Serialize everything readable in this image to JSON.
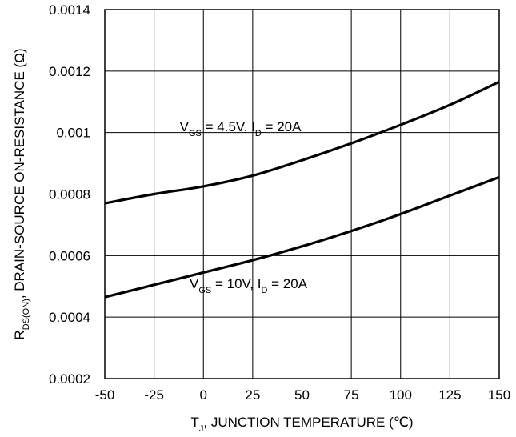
{
  "chart_data": {
    "type": "line",
    "title": "",
    "xlabel": {
      "main": "T",
      "sub": "J",
      "rest": ", JUNCTION TEMPERATURE (℃)"
    },
    "ylabel": {
      "main": "R",
      "sub": "DS(ON)",
      "rest": ", DRAIN-SOURCE ON-RESISTANCE (Ω)"
    },
    "xlim": [
      -50,
      150
    ],
    "ylim": [
      0.0002,
      0.0014
    ],
    "xticks": [
      -50,
      -25,
      0,
      25,
      50,
      75,
      100,
      125,
      150
    ],
    "xtick_labels": [
      "-50",
      "-25",
      "0",
      "25",
      "50",
      "75",
      "100",
      "125",
      "150"
    ],
    "yticks": [
      0.0002,
      0.0004,
      0.0006,
      0.0008,
      0.001,
      0.0012,
      0.0014
    ],
    "ytick_labels": [
      "0.0002",
      "0.0004",
      "0.0006",
      "0.0008",
      "0.001",
      "0.0012",
      "0.0014"
    ],
    "grid": true,
    "line_color": "#000000",
    "series": [
      {
        "annotation": {
          "parts": [
            {
              "text": "V",
              "sub": false
            },
            {
              "text": "GS",
              "sub": true
            },
            {
              "text": " = 4.5V, I",
              "sub": false
            },
            {
              "text": "D",
              "sub": true
            },
            {
              "text": " = 20A",
              "sub": false
            }
          ],
          "at": [
            -12,
            0.00102
          ]
        },
        "x": [
          -50,
          -25,
          0,
          25,
          50,
          75,
          100,
          125,
          150
        ],
        "values": [
          0.00077,
          0.0008,
          0.000825,
          0.00086,
          0.00091,
          0.000965,
          0.001025,
          0.00109,
          0.001165
        ]
      },
      {
        "annotation": {
          "parts": [
            {
              "text": "V",
              "sub": false
            },
            {
              "text": "GS",
              "sub": true
            },
            {
              "text": " = 10V, I",
              "sub": false
            },
            {
              "text": "D",
              "sub": true
            },
            {
              "text": " = 20A",
              "sub": false
            }
          ],
          "at": [
            -7,
            0.00051
          ]
        },
        "x": [
          -50,
          -25,
          0,
          25,
          50,
          75,
          100,
          125,
          150
        ],
        "values": [
          0.000465,
          0.000505,
          0.000545,
          0.000585,
          0.00063,
          0.00068,
          0.000735,
          0.000795,
          0.000855
        ]
      }
    ]
  }
}
